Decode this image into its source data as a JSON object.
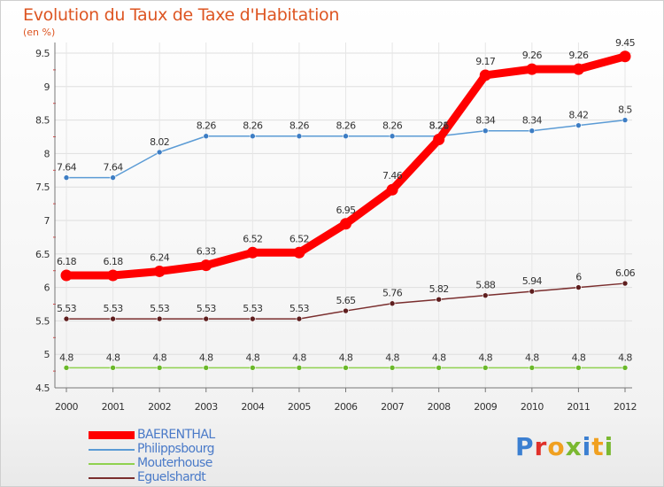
{
  "header": {
    "title": "Evolution du Taux de Taxe d'Habitation",
    "subtitle": "(en %)"
  },
  "brand": {
    "text": "Proxiti",
    "letter_colors": [
      "#3b7fd1",
      "#e0302a",
      "#f0a020",
      "#7ab830",
      "#3b7fd1",
      "#f0a020",
      "#7ab830"
    ]
  },
  "chart_data": {
    "type": "line",
    "title": "Evolution du Taux de Taxe d'Habitation",
    "subtitle": "(en %)",
    "xlabel": "",
    "ylabel": "",
    "x": [
      "2000",
      "2001",
      "2002",
      "2003",
      "2004",
      "2005",
      "2006",
      "2007",
      "2008",
      "2009",
      "2010",
      "2011",
      "2012"
    ],
    "ylim": [
      4.5,
      9.5
    ],
    "yticks": [
      "4.5",
      "5",
      "5.5",
      "6",
      "6.5",
      "7",
      "7.5",
      "8",
      "8.5",
      "9",
      "9.5"
    ],
    "grid": true,
    "legend_position": "bottom-left",
    "series": [
      {
        "name": "Philippsbourg",
        "color": "#5b9bd5",
        "marker_color": "#3d7dc4",
        "values": [
          7.64,
          7.64,
          8.02,
          8.26,
          8.26,
          8.26,
          8.26,
          8.26,
          8.26,
          8.34,
          8.34,
          8.42,
          8.5
        ],
        "labels": [
          "7.64",
          "7.64",
          "8.02",
          "8.26",
          "8.26",
          "8.26",
          "8.26",
          "8.26",
          "8.26",
          "8.34",
          "8.34",
          "8.42",
          "8.5"
        ]
      },
      {
        "name": "Mouterhouse",
        "color": "#8fd14f",
        "marker_color": "#6ab82a",
        "values": [
          4.8,
          4.8,
          4.8,
          4.8,
          4.8,
          4.8,
          4.8,
          4.8,
          4.8,
          4.8,
          4.8,
          4.8,
          4.8
        ],
        "labels": [
          "4.8",
          "4.8",
          "4.8",
          "4.8",
          "4.8",
          "4.8",
          "4.8",
          "4.8",
          "4.8",
          "4.8",
          "4.8",
          "4.8",
          "4.8"
        ]
      },
      {
        "name": "Eguelshardt",
        "color": "#7a2e2e",
        "marker_color": "#5e1e1e",
        "values": [
          5.53,
          5.53,
          5.53,
          5.53,
          5.53,
          5.53,
          5.65,
          5.76,
          5.82,
          5.88,
          5.94,
          6.0,
          6.06
        ],
        "labels": [
          "5.53",
          "5.53",
          "5.53",
          "5.53",
          "5.53",
          "5.53",
          "5.65",
          "5.76",
          "5.82",
          "5.88",
          "5.94",
          "6",
          "6.06"
        ]
      },
      {
        "name": "BAERENTHAL",
        "color": "#ff0000",
        "marker_color": "#ff0000",
        "values": [
          6.18,
          6.18,
          6.24,
          6.33,
          6.52,
          6.52,
          6.95,
          7.46,
          8.21,
          9.17,
          9.26,
          9.26,
          9.45
        ],
        "labels": [
          "6.18",
          "6.18",
          "6.24",
          "6.33",
          "6.52",
          "6.52",
          "6.95",
          "7.46",
          "8.21",
          "9.17",
          "9.26",
          "9.26",
          "9.45"
        ]
      }
    ],
    "legend_order": [
      "BAERENTHAL",
      "Philippsbourg",
      "Mouterhouse",
      "Eguelshardt"
    ]
  }
}
